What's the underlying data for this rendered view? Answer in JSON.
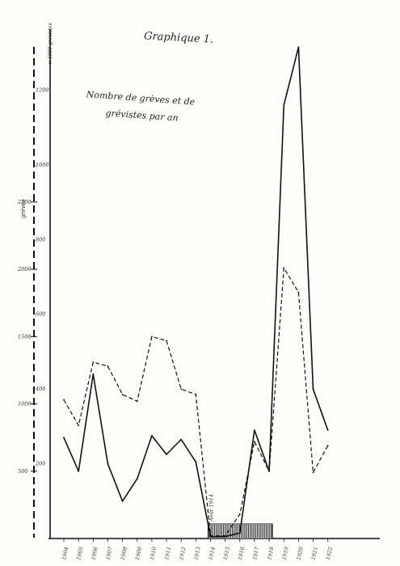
{
  "chart_data": {
    "type": "line",
    "title": "Graphique 1.",
    "subtitle": "Nombre de grèves et de grévistes par an",
    "x": [
      "1904",
      "1905",
      "1906",
      "1907",
      "1908",
      "1909",
      "1910",
      "1911",
      "1912",
      "1913",
      "1914",
      "1915",
      "1916",
      "1917",
      "1918",
      "1919",
      "1920",
      "1921",
      "1922"
    ],
    "left_axis": {
      "label": "× 1000 grévistes",
      "secondary_label": "grèves",
      "ticks": [
        "500",
        "1000",
        "1500",
        "2000",
        "2500"
      ],
      "ylim": [
        0,
        3400
      ]
    },
    "right_axis": {
      "ticks": [
        "200",
        "400",
        "600",
        "800",
        "1000",
        "1200"
      ],
      "ylim": [
        0,
        1320
      ]
    },
    "war_band": {
      "start": "1914",
      "end": "1918",
      "label": "Août 1914"
    },
    "series": [
      {
        "style": "solid",
        "axis": "grèves",
        "values": [
          270,
          180,
          440,
          200,
          100,
          160,
          275,
          225,
          265,
          205,
          5,
          5,
          15,
          290,
          180,
          1160,
          1315,
          400,
          290
        ]
      },
      {
        "style": "dashed",
        "axis": "grévistes",
        "values": [
          1030,
          840,
          1310,
          1280,
          1070,
          1020,
          1500,
          1470,
          1110,
          1070,
          20,
          20,
          180,
          720,
          500,
          2010,
          1830,
          490,
          690
        ]
      }
    ]
  },
  "colors": {
    "ink": "#111111",
    "paper": "#fdfdfb"
  }
}
